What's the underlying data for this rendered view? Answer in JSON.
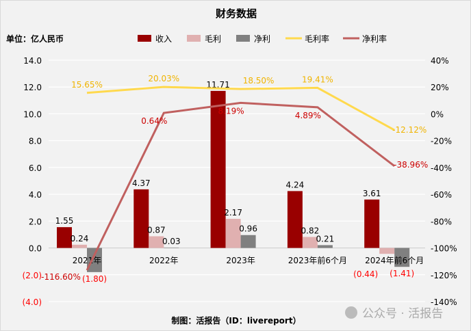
{
  "chart_data": {
    "type": "bar+line",
    "title": "财务数据",
    "unit_label": "单位：亿人民币",
    "footer": "制图：活报告（ID：livereport）",
    "watermark": "公众号 · 活报告",
    "categories": [
      "2021年",
      "2022年",
      "2023年",
      "2023年前6个月",
      "2024年前6个月"
    ],
    "left_axis": {
      "ylim": [
        -4,
        14
      ],
      "ticks": [
        -4,
        -2,
        0,
        2,
        4,
        6,
        8,
        10,
        12,
        14
      ],
      "tick_labels": [
        "(4.0)",
        "(2.0)",
        "0.0",
        "2.0",
        "4.0",
        "6.0",
        "8.0",
        "10.0",
        "12.0",
        "14.0"
      ]
    },
    "right_axis": {
      "ylim": [
        -140,
        40
      ],
      "ticks": [
        -140,
        -120,
        -100,
        -80,
        -60,
        -40,
        -20,
        0,
        20,
        40
      ],
      "tick_labels": [
        "-140%",
        "-120%",
        "-100%",
        "-80%",
        "-60%",
        "-40%",
        "-20%",
        "0%",
        "20%",
        "40%"
      ]
    },
    "grid": true,
    "legend_position": "top",
    "bar_series": [
      {
        "name": "收入",
        "color": "#990000",
        "values": [
          1.55,
          4.37,
          11.71,
          4.24,
          3.61
        ],
        "labels": [
          "1.55",
          "4.37",
          "11.71",
          "4.24",
          "3.61"
        ]
      },
      {
        "name": "毛利",
        "color": "#e0b0b0",
        "values": [
          0.24,
          0.87,
          2.17,
          0.82,
          -0.44
        ],
        "labels": [
          "0.24",
          "0.87",
          "2.17",
          "0.82",
          "(0.44)"
        ]
      },
      {
        "name": "净利",
        "color": "#808080",
        "values": [
          -1.8,
          0.03,
          0.96,
          0.21,
          -1.41
        ],
        "labels": [
          "(1.80)",
          "0.03",
          "0.96",
          "0.21",
          "(1.41)"
        ]
      }
    ],
    "line_series": [
      {
        "name": "毛利率",
        "color": "#ffd94d",
        "label_color": "#f0b400",
        "values": [
          15.65,
          20.03,
          18.5,
          19.41,
          -12.12
        ],
        "labels": [
          "15.65%",
          "20.03%",
          "18.50%",
          "19.41%",
          "-12.12%"
        ]
      },
      {
        "name": "净利率",
        "color": "#c0605f",
        "label_color": "#cc0000",
        "values": [
          -116.6,
          0.64,
          8.19,
          4.89,
          -38.96
        ],
        "labels": [
          "-116.60%",
          "0.64%",
          "8.19%",
          "4.89%",
          "-38.96%"
        ]
      }
    ],
    "negative_label_color": "#ff0000"
  }
}
